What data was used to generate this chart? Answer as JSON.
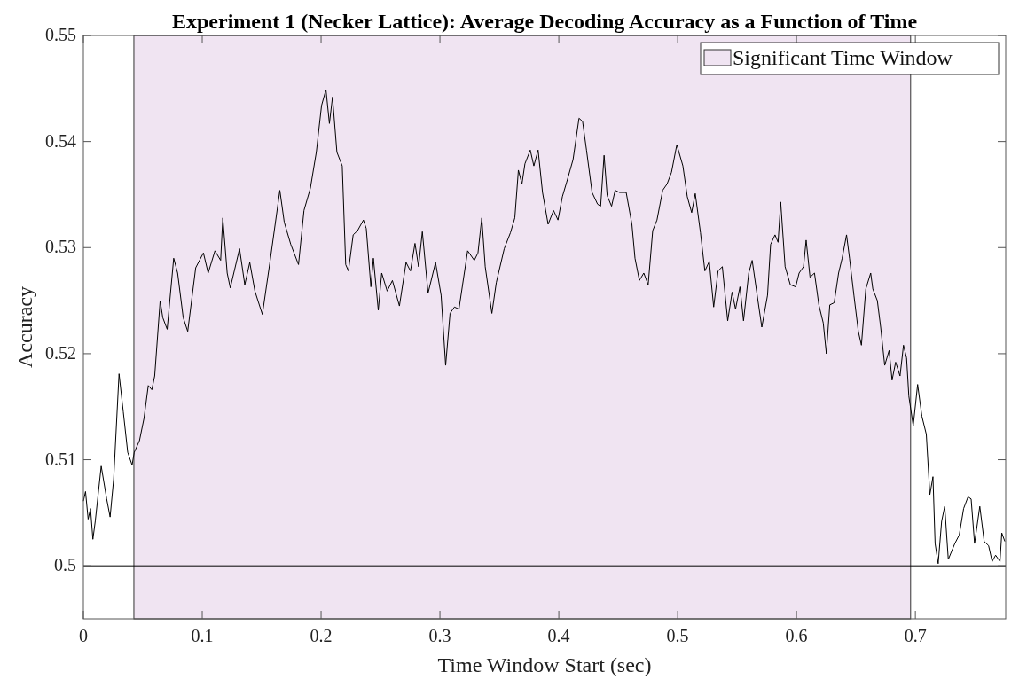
{
  "chart_data": {
    "type": "line",
    "title": "Experiment 1 (Necker Lattice): Average Decoding Accuracy as a Function of Time",
    "xlabel": "Time Window Start (sec)",
    "ylabel": "Accuracy",
    "xlim": [
      0,
      0.776
    ],
    "ylim": [
      0.495,
      0.55
    ],
    "xticks": [
      0,
      0.1,
      0.2,
      0.3,
      0.4,
      0.5,
      0.6,
      0.7
    ],
    "yticks": [
      0.5,
      0.51,
      0.52,
      0.53,
      0.54,
      0.55
    ],
    "grid": false,
    "legend": "top right",
    "line_style": "solid",
    "marker": "none",
    "bands": [
      {
        "axis": "x",
        "from": 0.0425,
        "to": 0.696,
        "label": "Significant Time Window",
        "color": "#f0e4f2"
      }
    ],
    "ref_lines": [
      {
        "axis": "y",
        "value": 0.5,
        "color": "#000000"
      }
    ],
    "series": [
      {
        "color": "#000000",
        "x": [
          0,
          0.0018,
          0.004,
          0.006,
          0.008,
          0.01,
          0.015,
          0.0196,
          0.0225,
          0.0255,
          0.03,
          0.0336,
          0.0373,
          0.041,
          0.0428,
          0.0472,
          0.051,
          0.0546,
          0.0576,
          0.06,
          0.0646,
          0.0668,
          0.0705,
          0.076,
          0.0793,
          0.084,
          0.0878,
          0.0945,
          0.101,
          0.105,
          0.1107,
          0.1155,
          0.1173,
          0.121,
          0.1236,
          0.1314,
          0.1358,
          0.14,
          0.1443,
          0.1506,
          0.1568,
          0.1653,
          0.169,
          0.1745,
          0.181,
          0.1856,
          0.191,
          0.196,
          0.2004,
          0.2041,
          0.207,
          0.2096,
          0.2133,
          0.2178,
          0.2207,
          0.223,
          0.227,
          0.2307,
          0.2356,
          0.238,
          0.2419,
          0.244,
          0.2481,
          0.251,
          0.2556,
          0.26,
          0.2659,
          0.2715,
          0.2752,
          0.279,
          0.282,
          0.2852,
          0.29,
          0.2963,
          0.301,
          0.3048,
          0.3085,
          0.3122,
          0.316,
          0.3233,
          0.3289,
          0.332,
          0.3352,
          0.3381,
          0.3437,
          0.3474,
          0.3541,
          0.3593,
          0.363,
          0.366,
          0.369,
          0.3715,
          0.376,
          0.379,
          0.3826,
          0.3863,
          0.391,
          0.3956,
          0.3993,
          0.403,
          0.4067,
          0.412,
          0.417,
          0.42,
          0.4233,
          0.428,
          0.4326,
          0.4352,
          0.4381,
          0.4407,
          0.4444,
          0.4474,
          0.4511,
          0.4567,
          0.4615,
          0.4641,
          0.4678,
          0.4715,
          0.4752,
          0.479,
          0.4826,
          0.4874,
          0.4911,
          0.4948,
          0.4993,
          0.5044,
          0.5081,
          0.5118,
          0.5148,
          0.5192,
          0.5229,
          0.5266,
          0.5303,
          0.534,
          0.5376,
          0.5421,
          0.5458,
          0.5487,
          0.5524,
          0.5554,
          0.5598,
          0.5627,
          0.5664,
          0.5708,
          0.5756,
          0.5782,
          0.5819,
          0.5845,
          0.5867,
          0.5904,
          0.5948,
          0.5993,
          0.6022,
          0.6059,
          0.6081,
          0.6114,
          0.6151,
          0.6188,
          0.6225,
          0.6251,
          0.628,
          0.6317,
          0.6354,
          0.6384,
          0.6421,
          0.6446,
          0.6483,
          0.652,
          0.6546,
          0.6583,
          0.6624,
          0.6642,
          0.668,
          0.6708,
          0.6742,
          0.6779,
          0.6804,
          0.6834,
          0.6871,
          0.69,
          0.6926,
          0.6945,
          0.6982,
          0.7019,
          0.7055,
          0.7092,
          0.7122,
          0.7148,
          0.7166,
          0.7192,
          0.7221,
          0.7247,
          0.7277,
          0.7332,
          0.7369,
          0.7406,
          0.7443,
          0.7469,
          0.7498,
          0.7542,
          0.7579,
          0.7616,
          0.7646,
          0.7675,
          0.7712,
          0.7727,
          0.7753
        ],
        "values": [
          0.5061,
          0.507,
          0.5044,
          0.5054,
          0.5025,
          0.5042,
          0.5094,
          0.5063,
          0.5046,
          0.5082,
          0.5181,
          0.5145,
          0.5107,
          0.5095,
          0.5107,
          0.5118,
          0.5139,
          0.517,
          0.5166,
          0.5179,
          0.525,
          0.5234,
          0.5223,
          0.529,
          0.5276,
          0.5234,
          0.5221,
          0.5281,
          0.5295,
          0.5276,
          0.5297,
          0.5288,
          0.5328,
          0.5276,
          0.5262,
          0.5299,
          0.5265,
          0.5286,
          0.5259,
          0.5237,
          0.5285,
          0.5354,
          0.5324,
          0.5303,
          0.5284,
          0.5335,
          0.5356,
          0.539,
          0.5434,
          0.5449,
          0.5417,
          0.5442,
          0.539,
          0.5377,
          0.5284,
          0.5278,
          0.5312,
          0.5316,
          0.5326,
          0.5318,
          0.5263,
          0.529,
          0.5241,
          0.5276,
          0.5259,
          0.5269,
          0.5245,
          0.5286,
          0.5278,
          0.5304,
          0.5282,
          0.5315,
          0.5257,
          0.5286,
          0.5255,
          0.5189,
          0.5238,
          0.5244,
          0.5242,
          0.5297,
          0.5288,
          0.5295,
          0.5328,
          0.5282,
          0.5238,
          0.5267,
          0.5299,
          0.5314,
          0.5328,
          0.5373,
          0.536,
          0.5379,
          0.5392,
          0.5377,
          0.5392,
          0.5352,
          0.5322,
          0.5335,
          0.5326,
          0.5348,
          0.5362,
          0.5383,
          0.5422,
          0.5419,
          0.5392,
          0.5352,
          0.5341,
          0.5339,
          0.5387,
          0.5349,
          0.5339,
          0.5354,
          0.5352,
          0.5352,
          0.5322,
          0.529,
          0.5269,
          0.5276,
          0.5265,
          0.5316,
          0.5326,
          0.5354,
          0.536,
          0.5371,
          0.5397,
          0.5377,
          0.5348,
          0.5333,
          0.5351,
          0.5314,
          0.5278,
          0.5287,
          0.5244,
          0.5278,
          0.5282,
          0.5231,
          0.5258,
          0.5242,
          0.5263,
          0.5231,
          0.5276,
          0.5288,
          0.5259,
          0.5225,
          0.5255,
          0.5303,
          0.5312,
          0.5305,
          0.5343,
          0.5282,
          0.5265,
          0.5263,
          0.5276,
          0.5282,
          0.5307,
          0.5272,
          0.5276,
          0.5246,
          0.5229,
          0.52,
          0.5246,
          0.5248,
          0.5276,
          0.529,
          0.5312,
          0.529,
          0.5255,
          0.5221,
          0.5208,
          0.5261,
          0.5276,
          0.5261,
          0.525,
          0.5225,
          0.5189,
          0.5203,
          0.5175,
          0.5192,
          0.5179,
          0.5208,
          0.5196,
          0.516,
          0.5132,
          0.5171,
          0.5141,
          0.5124,
          0.5067,
          0.5084,
          0.5021,
          0.5002,
          0.5042,
          0.5056,
          0.5006,
          0.5021,
          0.5029,
          0.5054,
          0.5065,
          0.5063,
          0.5021,
          0.5056,
          0.5023,
          0.5019,
          0.5004,
          0.501,
          0.5004,
          0.5031,
          0.5023
        ]
      }
    ]
  }
}
